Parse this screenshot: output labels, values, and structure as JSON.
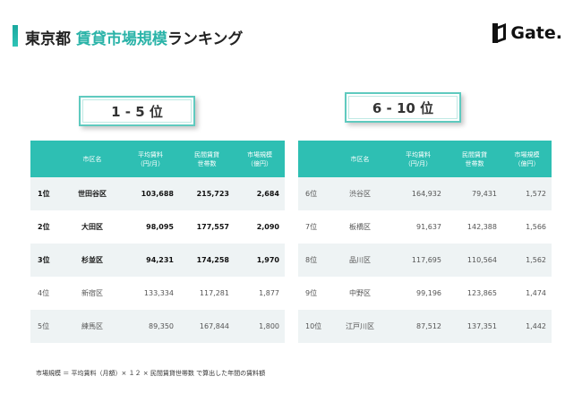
{
  "header": {
    "title_prefix": "東京都 ",
    "title_accent": "賃貸市場規模",
    "title_suffix": "ランキング",
    "logo_text": "Gate."
  },
  "left": {
    "label": "1 - 5 位",
    "headers": [
      "",
      "市区名",
      "平均賃料\n（円/月）",
      "民間賃貸\n世帯数",
      "市場規模\n（億円）"
    ],
    "rows": [
      {
        "rank": "1位",
        "name": "世田谷区",
        "rent": "103,688",
        "households": "215,723",
        "market": "2,684",
        "top": true
      },
      {
        "rank": "2位",
        "name": "大田区",
        "rent": "98,095",
        "households": "177,557",
        "market": "2,090",
        "top": true
      },
      {
        "rank": "3位",
        "name": "杉並区",
        "rent": "94,231",
        "households": "174,258",
        "market": "1,970",
        "top": true
      },
      {
        "rank": "4位",
        "name": "新宿区",
        "rent": "133,334",
        "households": "117,281",
        "market": "1,877",
        "top": false
      },
      {
        "rank": "5位",
        "name": "練馬区",
        "rent": "89,350",
        "households": "167,844",
        "market": "1,800",
        "top": false
      }
    ]
  },
  "right": {
    "label": "6 - 10 位",
    "headers": [
      "",
      "市区名",
      "平均賃料\n（円/月）",
      "民間賃貸\n世帯数",
      "市場規模\n（億円）"
    ],
    "rows": [
      {
        "rank": "6位",
        "name": "渋谷区",
        "rent": "164,932",
        "households": "79,431",
        "market": "1,572",
        "top": false
      },
      {
        "rank": "7位",
        "name": "板橋区",
        "rent": "91,637",
        "households": "142,388",
        "market": "1,566",
        "top": false
      },
      {
        "rank": "8位",
        "name": "品川区",
        "rent": "117,695",
        "households": "110,564",
        "market": "1,562",
        "top": false
      },
      {
        "rank": "9位",
        "name": "中野区",
        "rent": "99,196",
        "households": "123,865",
        "market": "1,474",
        "top": false
      },
      {
        "rank": "10位",
        "name": "江戸川区",
        "rent": "87,512",
        "households": "137,351",
        "market": "1,442",
        "top": false
      }
    ]
  },
  "footnote": "市場規模 ＝ 平均賃料（月額）× １２ × 民間賃貸世帯数 で算出した年間の賃料額",
  "colors": {
    "accent": "#2ebfb3",
    "row_alt": "#eef3f4"
  }
}
